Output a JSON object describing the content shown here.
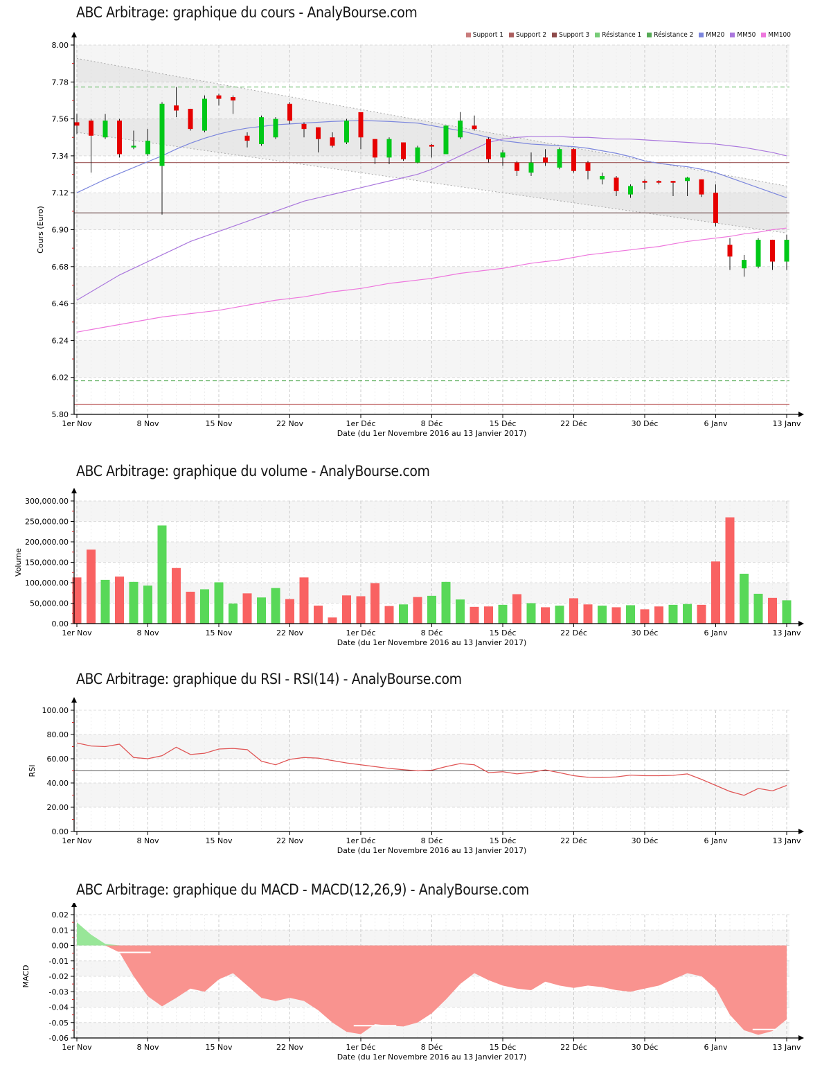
{
  "chart_data": [
    {
      "type": "candlestick",
      "title": "ABC Arbitrage: graphique du cours - AnalyBourse.com",
      "ylabel": "Cours (Euro)",
      "xlabel": "Date (du 1er Novembre 2016 au 13 Janvier 2017)",
      "x_ticks": [
        "1er Nov",
        "8 Nov",
        "15 Nov",
        "22 Nov",
        "1er Déc",
        "8 Déc",
        "15 Déc",
        "22 Déc",
        "30 Déc",
        "6 Janv",
        "13 Janv"
      ],
      "y_ticks": [
        "8.00",
        "7.78",
        "7.56",
        "7.34",
        "7.12",
        "6.90",
        "6.68",
        "6.46",
        "6.24",
        "6.02",
        "5.80"
      ],
      "ylim": [
        5.8,
        8.0
      ],
      "legend": [
        {
          "label": "Support 1",
          "color": "#c97b7b"
        },
        {
          "label": "Support 2",
          "color": "#ab5f5f"
        },
        {
          "label": "Support 3",
          "color": "#8e4a4a"
        },
        {
          "label": "Résistance 1",
          "color": "#77cc77"
        },
        {
          "label": "Résistance 2",
          "color": "#55aa55"
        },
        {
          "label": "MM20",
          "color": "#7b86dd"
        },
        {
          "label": "MM50",
          "color": "#aa77dd"
        },
        {
          "label": "MM100",
          "color": "#ee77dd"
        }
      ],
      "levels": [
        {
          "name": "Support 1",
          "value": 7.3,
          "color": "#a86a6a",
          "style": "solid"
        },
        {
          "name": "Support 2",
          "value": 7.0,
          "color": "#7d5f5f",
          "style": "solid"
        },
        {
          "name": "Support 3",
          "value": 5.86,
          "color": "#c47070",
          "style": "solid"
        },
        {
          "name": "Résistance 1",
          "value": 7.75,
          "color": "#66bb66",
          "style": "dashed"
        },
        {
          "name": "Résistance 2",
          "value": 6.0,
          "color": "#55aa55",
          "style": "dashed"
        }
      ],
      "channel": {
        "upper": [
          7.92,
          7.16
        ],
        "lower": [
          7.48,
          6.88
        ],
        "fill": "rgba(170,170,170,0.16)",
        "line": "#a8a8a8"
      },
      "mm": [
        {
          "name": "MM20",
          "color": "#7b86dd",
          "values": [
            7.12,
            7.16,
            7.2,
            7.235,
            7.27,
            7.305,
            7.34,
            7.38,
            7.415,
            7.445,
            7.47,
            7.49,
            7.505,
            7.515,
            7.525,
            7.53,
            7.535,
            7.54,
            7.545,
            7.548,
            7.55,
            7.548,
            7.545,
            7.54,
            7.535,
            7.52,
            7.505,
            7.49,
            7.47,
            7.45,
            7.43,
            7.42,
            7.41,
            7.405,
            7.4,
            7.395,
            7.385,
            7.37,
            7.355,
            7.335,
            7.31,
            7.295,
            7.285,
            7.275,
            7.26,
            7.24,
            7.21,
            7.18,
            7.15,
            7.12,
            7.09
          ]
        },
        {
          "name": "MM50",
          "color": "#aa77dd",
          "values": [
            6.48,
            6.53,
            6.58,
            6.63,
            6.67,
            6.71,
            6.75,
            6.79,
            6.83,
            6.86,
            6.89,
            6.92,
            6.95,
            6.98,
            7.01,
            7.04,
            7.07,
            7.09,
            7.11,
            7.13,
            7.15,
            7.17,
            7.19,
            7.21,
            7.23,
            7.26,
            7.3,
            7.34,
            7.38,
            7.42,
            7.44,
            7.45,
            7.455,
            7.455,
            7.455,
            7.45,
            7.45,
            7.445,
            7.44,
            7.44,
            7.435,
            7.43,
            7.425,
            7.42,
            7.415,
            7.41,
            7.4,
            7.39,
            7.375,
            7.36,
            7.34
          ]
        },
        {
          "name": "MM100",
          "color": "#ee77dd",
          "values": [
            6.29,
            6.305,
            6.32,
            6.335,
            6.35,
            6.365,
            6.38,
            6.39,
            6.4,
            6.41,
            6.42,
            6.435,
            6.45,
            6.465,
            6.48,
            6.49,
            6.5,
            6.515,
            6.53,
            6.54,
            6.55,
            6.565,
            6.58,
            6.59,
            6.6,
            6.61,
            6.625,
            6.64,
            6.65,
            6.66,
            6.67,
            6.685,
            6.7,
            6.71,
            6.72,
            6.735,
            6.75,
            6.76,
            6.77,
            6.78,
            6.79,
            6.8,
            6.815,
            6.83,
            6.84,
            6.85,
            6.86,
            6.875,
            6.885,
            6.9,
            6.91
          ]
        }
      ],
      "candles": {
        "open": [
          7.54,
          7.55,
          7.45,
          7.55,
          7.39,
          7.35,
          7.28,
          7.64,
          7.62,
          7.49,
          7.7,
          7.69,
          7.46,
          7.41,
          7.45,
          7.65,
          7.53,
          7.51,
          7.45,
          7.42,
          7.6,
          7.44,
          7.33,
          7.42,
          7.3,
          7.405,
          7.35,
          7.45,
          7.52,
          7.44,
          7.33,
          7.3,
          7.24,
          7.33,
          7.27,
          7.38,
          7.3,
          7.2,
          7.21,
          7.11,
          7.19,
          7.19,
          7.19,
          7.19,
          7.2,
          7.12,
          6.81,
          6.67,
          6.68,
          6.84,
          6.71
        ],
        "high": [
          7.59,
          7.56,
          7.59,
          7.56,
          7.49,
          7.5,
          7.66,
          7.75,
          7.62,
          7.7,
          7.71,
          7.7,
          7.48,
          7.58,
          7.57,
          7.66,
          7.54,
          7.51,
          7.48,
          7.56,
          7.6,
          7.44,
          7.45,
          7.42,
          7.4,
          7.41,
          7.52,
          7.6,
          7.58,
          7.45,
          7.375,
          7.31,
          7.36,
          7.38,
          7.39,
          7.385,
          7.31,
          7.24,
          7.22,
          7.17,
          7.2,
          7.195,
          7.19,
          7.215,
          7.2,
          7.17,
          6.85,
          6.75,
          6.85,
          6.84,
          6.87
        ],
        "low": [
          7.47,
          7.24,
          7.44,
          7.33,
          7.38,
          7.34,
          6.99,
          7.57,
          7.49,
          7.48,
          7.64,
          7.59,
          7.39,
          7.4,
          7.44,
          7.53,
          7.45,
          7.36,
          7.39,
          7.41,
          7.38,
          7.29,
          7.29,
          7.31,
          7.295,
          7.33,
          7.35,
          7.44,
          7.49,
          7.3,
          7.28,
          7.22,
          7.22,
          7.28,
          7.26,
          7.24,
          7.2,
          7.17,
          7.1,
          7.09,
          7.14,
          7.17,
          7.1,
          7.1,
          7.095,
          6.92,
          6.66,
          6.62,
          6.67,
          6.66,
          6.66
        ],
        "close": [
          7.52,
          7.46,
          7.55,
          7.35,
          7.4,
          7.43,
          7.65,
          7.61,
          7.5,
          7.68,
          7.68,
          7.67,
          7.43,
          7.57,
          7.56,
          7.55,
          7.5,
          7.44,
          7.4,
          7.55,
          7.45,
          7.33,
          7.44,
          7.32,
          7.39,
          7.395,
          7.52,
          7.55,
          7.5,
          7.32,
          7.36,
          7.25,
          7.3,
          7.3,
          7.38,
          7.25,
          7.25,
          7.22,
          7.13,
          7.16,
          7.18,
          7.18,
          7.18,
          7.21,
          7.11,
          6.94,
          6.74,
          6.72,
          6.84,
          6.71,
          6.84
        ]
      },
      "colors": {
        "up": "#00c818",
        "down": "#e60000",
        "wick": "#1a1a1a"
      }
    },
    {
      "type": "bar",
      "title": "ABC Arbitrage: graphique du volume - AnalyBourse.com",
      "ylabel": "Volume",
      "xlabel": "Date (du 1er Novembre 2016 au 13 Janvier 2017)",
      "x_ticks": [
        "1er Nov",
        "8 Nov",
        "15 Nov",
        "22 Nov",
        "1er Déc",
        "8 Déc",
        "15 Déc",
        "22 Déc",
        "30 Déc",
        "6 Janv",
        "13 Janv"
      ],
      "y_ticks": [
        "300,000.00",
        "250,000.00",
        "200,000.00",
        "150,000.00",
        "100,000.00",
        "50,000.00",
        "0.00"
      ],
      "ylim": [
        0,
        300000
      ],
      "values": [
        113000,
        181000,
        107000,
        115000,
        102000,
        93000,
        240000,
        136000,
        78000,
        84000,
        101000,
        49000,
        74000,
        64000,
        87000,
        60000,
        113000,
        44000,
        15000,
        69000,
        67000,
        99000,
        43000,
        47000,
        65000,
        68000,
        102000,
        59000,
        41000,
        42000,
        46000,
        72000,
        50000,
        40000,
        44000,
        62000,
        47000,
        44000,
        40000,
        45000,
        35000,
        42000,
        46000,
        48000,
        46000,
        152000,
        260000,
        122000,
        73000,
        63000,
        57000
      ],
      "bar_colors": [
        "r",
        "r",
        "g",
        "r",
        "g",
        "g",
        "g",
        "r",
        "r",
        "g",
        "g",
        "g",
        "r",
        "g",
        "g",
        "r",
        "r",
        "r",
        "r",
        "r",
        "r",
        "r",
        "r",
        "g",
        "r",
        "g",
        "g",
        "g",
        "r",
        "r",
        "g",
        "r",
        "g",
        "r",
        "g",
        "r",
        "r",
        "g",
        "r",
        "g",
        "r",
        "r",
        "g",
        "g",
        "r",
        "r",
        "r",
        "g",
        "g",
        "r",
        "g"
      ],
      "colors": {
        "up": "#58d858",
        "down": "#f96262"
      }
    },
    {
      "type": "line",
      "title": "ABC Arbitrage: graphique du RSI - RSI(14) - AnalyBourse.com",
      "ylabel": "RSI",
      "xlabel": "Date (du 1er Novembre 2016 au 13 Janvier 2017)",
      "x_ticks": [
        "1er Nov",
        "8 Nov",
        "15 Nov",
        "22 Nov",
        "1er Déc",
        "8 Déc",
        "15 Déc",
        "22 Déc",
        "30 Déc",
        "6 Janv",
        "13 Janv"
      ],
      "y_ticks": [
        "100.00",
        "80.00",
        "60.00",
        "40.00",
        "20.00",
        "0.00"
      ],
      "ylim": [
        0,
        100
      ],
      "midline": 50,
      "values": [
        73,
        70.5,
        70,
        72,
        61,
        60,
        62.5,
        69.5,
        63.5,
        64.5,
        68,
        68.5,
        67.5,
        58,
        55,
        59.5,
        61,
        60.5,
        58.5,
        56.5,
        55,
        53.5,
        52,
        51,
        50,
        50.5,
        53.5,
        56,
        55,
        48.5,
        49.3,
        47.5,
        48.8,
        50.8,
        48.5,
        46,
        44.7,
        44.5,
        45,
        46.5,
        46,
        46,
        46.3,
        47.5,
        43,
        38,
        33,
        29.8,
        35.5,
        33.5,
        38
      ],
      "color": "#e05555"
    },
    {
      "type": "area",
      "title": "ABC Arbitrage: graphique du MACD - MACD(12,26,9) - AnalyBourse.com",
      "ylabel": "MACD",
      "xlabel": "Date (du 1er Novembre 2016 au 13 Janvier 2017)",
      "x_ticks": [
        "1er Nov",
        "8 Nov",
        "15 Nov",
        "22 Nov",
        "1er Déc",
        "8 Déc",
        "15 Déc",
        "22 Déc",
        "30 Déc",
        "6 Janv",
        "13 Janv"
      ],
      "y_ticks": [
        "0.02",
        "0.01",
        "0.00",
        "-0.01",
        "-0.02",
        "-0.03",
        "-0.04",
        "-0.05",
        "-0.06"
      ],
      "ylim": [
        -0.06,
        0.02
      ],
      "values": [
        0.015,
        0.007,
        0.001,
        -0.0045,
        -0.02,
        -0.033,
        -0.0395,
        -0.034,
        -0.028,
        -0.03,
        -0.022,
        -0.018,
        -0.026,
        -0.034,
        -0.036,
        -0.034,
        -0.036,
        -0.042,
        -0.05,
        -0.056,
        -0.0575,
        -0.051,
        -0.052,
        -0.0525,
        -0.05,
        -0.044,
        -0.035,
        -0.025,
        -0.018,
        -0.0225,
        -0.026,
        -0.028,
        -0.029,
        -0.0235,
        -0.026,
        -0.0275,
        -0.026,
        -0.027,
        -0.029,
        -0.03,
        -0.028,
        -0.026,
        -0.022,
        -0.018,
        -0.02,
        -0.028,
        -0.045,
        -0.055,
        -0.058,
        -0.0555,
        -0.048
      ],
      "signal_dashes": [
        {
          "from": 2.6,
          "to": 5.2,
          "value": -0.0045
        },
        {
          "from": 19.5,
          "to": 22.5,
          "value": -0.052
        },
        {
          "from": 47.6,
          "to": 49.3,
          "value": -0.0545
        }
      ],
      "colors": {
        "pos": "#98e698",
        "neg": "#f9938f"
      }
    }
  ]
}
